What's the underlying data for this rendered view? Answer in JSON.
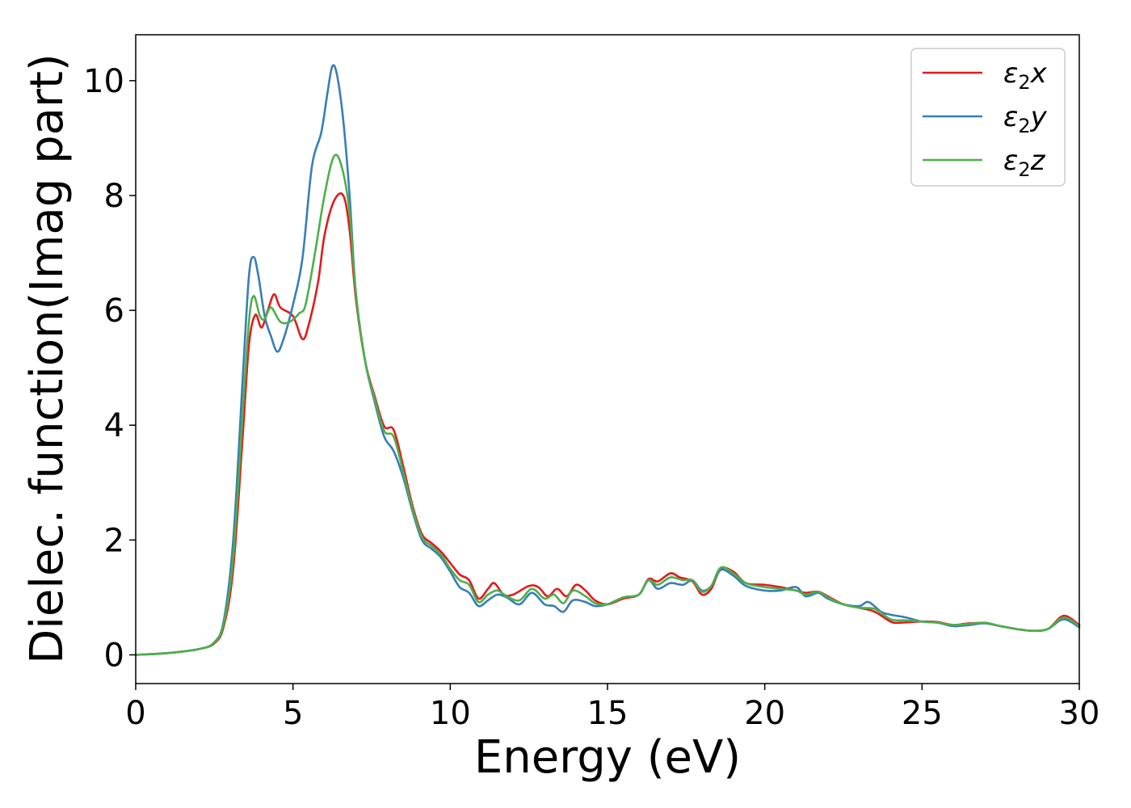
{
  "chart_data": {
    "type": "line",
    "xlabel": "Energy (eV)",
    "ylabel": "Dielec. function(Imag part)",
    "xlim": [
      0,
      30
    ],
    "ylim": [
      -0.5,
      10.8
    ],
    "xticks": [
      0,
      5,
      10,
      15,
      20,
      25,
      30
    ],
    "yticks": [
      0,
      2,
      4,
      6,
      8,
      10
    ],
    "grid": false,
    "legend_position": "top-right",
    "series": [
      {
        "name": "ε2x",
        "legend": {
          "symbol": "ε",
          "sub": "2",
          "axis": "x"
        },
        "color": "#e41a1c",
        "points": [
          [
            0,
            0
          ],
          [
            1,
            0.03
          ],
          [
            2,
            0.1
          ],
          [
            2.5,
            0.2
          ],
          [
            2.8,
            0.5
          ],
          [
            3.1,
            1.5
          ],
          [
            3.4,
            3.8
          ],
          [
            3.6,
            5.4
          ],
          [
            3.8,
            5.92
          ],
          [
            4.0,
            5.7
          ],
          [
            4.2,
            6.0
          ],
          [
            4.4,
            6.28
          ],
          [
            4.6,
            6.05
          ],
          [
            5.0,
            5.9
          ],
          [
            5.3,
            5.5
          ],
          [
            5.5,
            5.75
          ],
          [
            5.8,
            6.5
          ],
          [
            6.0,
            7.3
          ],
          [
            6.3,
            7.9
          ],
          [
            6.6,
            8.0
          ],
          [
            6.8,
            7.4
          ],
          [
            7.0,
            6.2
          ],
          [
            7.3,
            5.1
          ],
          [
            7.6,
            4.5
          ],
          [
            7.9,
            3.98
          ],
          [
            8.2,
            3.92
          ],
          [
            8.5,
            3.3
          ],
          [
            8.8,
            2.6
          ],
          [
            9.1,
            2.1
          ],
          [
            9.4,
            1.95
          ],
          [
            9.7,
            1.8
          ],
          [
            10.0,
            1.6
          ],
          [
            10.3,
            1.4
          ],
          [
            10.6,
            1.3
          ],
          [
            10.9,
            0.98
          ],
          [
            11.2,
            1.15
          ],
          [
            11.4,
            1.25
          ],
          [
            11.7,
            1.05
          ],
          [
            12.0,
            1.05
          ],
          [
            12.5,
            1.2
          ],
          [
            12.8,
            1.18
          ],
          [
            13.1,
            1.02
          ],
          [
            13.4,
            1.15
          ],
          [
            13.7,
            1.02
          ],
          [
            14.0,
            1.22
          ],
          [
            14.3,
            1.12
          ],
          [
            14.6,
            0.95
          ],
          [
            15.0,
            0.88
          ],
          [
            15.5,
            0.98
          ],
          [
            16.0,
            1.05
          ],
          [
            16.3,
            1.32
          ],
          [
            16.6,
            1.28
          ],
          [
            17.0,
            1.42
          ],
          [
            17.3,
            1.35
          ],
          [
            17.7,
            1.28
          ],
          [
            18.0,
            1.05
          ],
          [
            18.3,
            1.15
          ],
          [
            18.6,
            1.5
          ],
          [
            19.0,
            1.45
          ],
          [
            19.4,
            1.25
          ],
          [
            20.0,
            1.22
          ],
          [
            20.5,
            1.18
          ],
          [
            21.0,
            1.12
          ],
          [
            21.3,
            1.08
          ],
          [
            21.7,
            1.1
          ],
          [
            22.0,
            1.02
          ],
          [
            22.5,
            0.88
          ],
          [
            23.0,
            0.82
          ],
          [
            23.5,
            0.75
          ],
          [
            24.0,
            0.58
          ],
          [
            24.3,
            0.56
          ],
          [
            25.0,
            0.58
          ],
          [
            25.5,
            0.57
          ],
          [
            26.0,
            0.52
          ],
          [
            26.5,
            0.55
          ],
          [
            27.0,
            0.55
          ],
          [
            27.5,
            0.5
          ],
          [
            28.0,
            0.45
          ],
          [
            28.5,
            0.42
          ],
          [
            29.0,
            0.45
          ],
          [
            29.5,
            0.68
          ],
          [
            30.0,
            0.52
          ]
        ]
      },
      {
        "name": "ε2y",
        "legend": {
          "symbol": "ε",
          "sub": "2",
          "axis": "y"
        },
        "color": "#377eb8",
        "points": [
          [
            0,
            0
          ],
          [
            1,
            0.03
          ],
          [
            2,
            0.1
          ],
          [
            2.5,
            0.22
          ],
          [
            2.8,
            0.6
          ],
          [
            3.1,
            2.0
          ],
          [
            3.4,
            4.8
          ],
          [
            3.6,
            6.6
          ],
          [
            3.75,
            6.93
          ],
          [
            3.9,
            6.6
          ],
          [
            4.1,
            5.9
          ],
          [
            4.3,
            5.55
          ],
          [
            4.5,
            5.28
          ],
          [
            4.7,
            5.5
          ],
          [
            5.0,
            6.1
          ],
          [
            5.3,
            6.9
          ],
          [
            5.6,
            8.5
          ],
          [
            5.9,
            9.1
          ],
          [
            6.1,
            9.8
          ],
          [
            6.25,
            10.25
          ],
          [
            6.4,
            10.1
          ],
          [
            6.6,
            9.3
          ],
          [
            6.8,
            8.0
          ],
          [
            7.0,
            6.3
          ],
          [
            7.3,
            5.1
          ],
          [
            7.6,
            4.4
          ],
          [
            7.9,
            3.8
          ],
          [
            8.2,
            3.55
          ],
          [
            8.5,
            3.1
          ],
          [
            8.8,
            2.5
          ],
          [
            9.1,
            2.0
          ],
          [
            9.4,
            1.85
          ],
          [
            9.7,
            1.7
          ],
          [
            10.0,
            1.45
          ],
          [
            10.3,
            1.18
          ],
          [
            10.6,
            1.08
          ],
          [
            10.9,
            0.85
          ],
          [
            11.2,
            0.95
          ],
          [
            11.5,
            1.05
          ],
          [
            11.8,
            1.0
          ],
          [
            12.2,
            0.88
          ],
          [
            12.6,
            1.08
          ],
          [
            13.0,
            0.88
          ],
          [
            13.3,
            0.85
          ],
          [
            13.6,
            0.75
          ],
          [
            13.9,
            0.95
          ],
          [
            14.3,
            0.92
          ],
          [
            14.6,
            0.85
          ],
          [
            15.0,
            0.88
          ],
          [
            15.5,
            1.0
          ],
          [
            16.0,
            1.05
          ],
          [
            16.3,
            1.3
          ],
          [
            16.6,
            1.15
          ],
          [
            17.0,
            1.25
          ],
          [
            17.4,
            1.22
          ],
          [
            17.7,
            1.3
          ],
          [
            18.0,
            1.12
          ],
          [
            18.3,
            1.2
          ],
          [
            18.6,
            1.48
          ],
          [
            19.0,
            1.38
          ],
          [
            19.4,
            1.2
          ],
          [
            20.0,
            1.12
          ],
          [
            20.5,
            1.12
          ],
          [
            21.0,
            1.18
          ],
          [
            21.3,
            1.02
          ],
          [
            21.7,
            1.08
          ],
          [
            22.0,
            0.98
          ],
          [
            22.5,
            0.88
          ],
          [
            23.0,
            0.85
          ],
          [
            23.3,
            0.92
          ],
          [
            23.7,
            0.75
          ],
          [
            24.0,
            0.7
          ],
          [
            24.5,
            0.65
          ],
          [
            25.0,
            0.58
          ],
          [
            25.5,
            0.56
          ],
          [
            26.0,
            0.5
          ],
          [
            26.5,
            0.52
          ],
          [
            27.0,
            0.55
          ],
          [
            27.5,
            0.5
          ],
          [
            28.0,
            0.45
          ],
          [
            28.5,
            0.42
          ],
          [
            29.0,
            0.45
          ],
          [
            29.5,
            0.62
          ],
          [
            30.0,
            0.48
          ]
        ]
      },
      {
        "name": "ε2z",
        "legend": {
          "symbol": "ε",
          "sub": "2",
          "axis": "z"
        },
        "color": "#4daf4a",
        "points": [
          [
            0,
            0
          ],
          [
            1,
            0.03
          ],
          [
            2,
            0.1
          ],
          [
            2.5,
            0.21
          ],
          [
            2.8,
            0.55
          ],
          [
            3.1,
            1.7
          ],
          [
            3.4,
            4.2
          ],
          [
            3.6,
            5.8
          ],
          [
            3.75,
            6.25
          ],
          [
            3.95,
            5.9
          ],
          [
            4.1,
            5.85
          ],
          [
            4.3,
            6.05
          ],
          [
            4.6,
            5.8
          ],
          [
            4.9,
            5.8
          ],
          [
            5.2,
            5.95
          ],
          [
            5.4,
            6.1
          ],
          [
            5.7,
            7.0
          ],
          [
            6.0,
            8.0
          ],
          [
            6.3,
            8.68
          ],
          [
            6.55,
            8.5
          ],
          [
            6.8,
            7.7
          ],
          [
            7.0,
            6.3
          ],
          [
            7.3,
            5.1
          ],
          [
            7.6,
            4.45
          ],
          [
            7.9,
            3.9
          ],
          [
            8.2,
            3.8
          ],
          [
            8.5,
            3.2
          ],
          [
            8.8,
            2.55
          ],
          [
            9.1,
            2.05
          ],
          [
            9.4,
            1.9
          ],
          [
            9.7,
            1.75
          ],
          [
            10.0,
            1.5
          ],
          [
            10.3,
            1.3
          ],
          [
            10.6,
            1.22
          ],
          [
            10.9,
            0.92
          ],
          [
            11.2,
            1.05
          ],
          [
            11.5,
            1.12
          ],
          [
            11.8,
            1.02
          ],
          [
            12.2,
            0.95
          ],
          [
            12.6,
            1.15
          ],
          [
            13.0,
            0.98
          ],
          [
            13.3,
            1.05
          ],
          [
            13.6,
            0.9
          ],
          [
            13.9,
            1.12
          ],
          [
            14.3,
            1.02
          ],
          [
            14.6,
            0.9
          ],
          [
            15.0,
            0.88
          ],
          [
            15.5,
            1.0
          ],
          [
            16.0,
            1.05
          ],
          [
            16.3,
            1.3
          ],
          [
            16.6,
            1.22
          ],
          [
            17.0,
            1.35
          ],
          [
            17.4,
            1.3
          ],
          [
            17.7,
            1.3
          ],
          [
            18.0,
            1.1
          ],
          [
            18.3,
            1.2
          ],
          [
            18.6,
            1.52
          ],
          [
            19.0,
            1.42
          ],
          [
            19.4,
            1.25
          ],
          [
            20.0,
            1.18
          ],
          [
            20.5,
            1.15
          ],
          [
            21.0,
            1.12
          ],
          [
            21.3,
            1.05
          ],
          [
            21.7,
            1.1
          ],
          [
            22.0,
            1.0
          ],
          [
            22.5,
            0.88
          ],
          [
            23.0,
            0.82
          ],
          [
            23.5,
            0.8
          ],
          [
            24.0,
            0.62
          ],
          [
            24.5,
            0.6
          ],
          [
            25.0,
            0.58
          ],
          [
            25.5,
            0.56
          ],
          [
            26.0,
            0.52
          ],
          [
            26.5,
            0.54
          ],
          [
            27.0,
            0.56
          ],
          [
            27.5,
            0.5
          ],
          [
            28.0,
            0.45
          ],
          [
            28.5,
            0.42
          ],
          [
            29.0,
            0.45
          ],
          [
            29.5,
            0.65
          ],
          [
            30.0,
            0.5
          ]
        ]
      }
    ]
  }
}
